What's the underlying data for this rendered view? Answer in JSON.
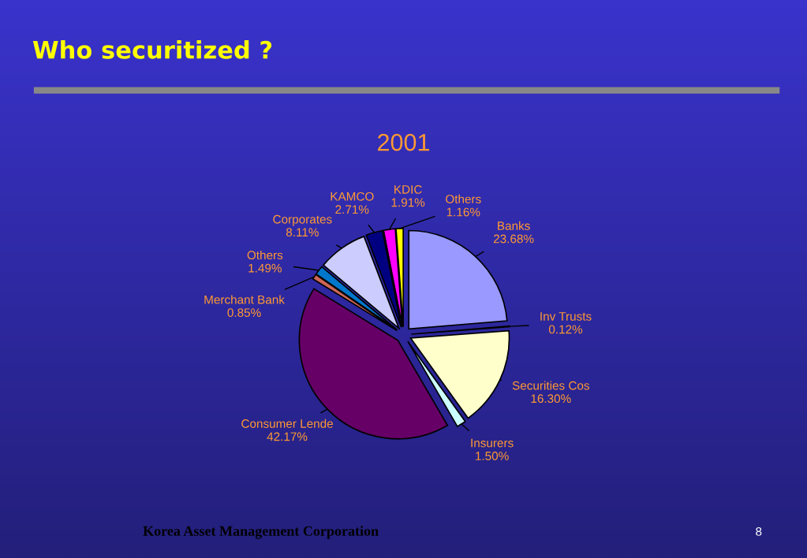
{
  "chart_data": {
    "type": "pie",
    "title": "2001",
    "categories": [
      "Banks",
      "Inv Trusts",
      "Securities Cos",
      "Insurers",
      "Consumer Lende",
      "Merchant Bank",
      "Others",
      "Corporates",
      "KAMCO",
      "KDIC",
      "Others"
    ],
    "values": [
      23.68,
      0.12,
      16.3,
      1.5,
      42.17,
      0.85,
      1.49,
      8.11,
      2.71,
      1.91,
      1.16
    ],
    "value_labels": [
      "23.68%",
      "0.12%",
      "16.30%",
      "1.50%",
      "42.17%",
      "0.85%",
      "1.49%",
      "8.11%",
      "2.71%",
      "1.91%",
      "1.16%"
    ],
    "colors": [
      "#9999ff",
      "#660033",
      "#ffffcc",
      "#ccffff",
      "#660066",
      "#cc6655",
      "#0077cc",
      "#ccccff",
      "#000080",
      "#ff00ff",
      "#ffff00"
    ],
    "annotations": [
      "Who securitized ?",
      "Korea Asset Management Corporation",
      "8"
    ]
  }
}
